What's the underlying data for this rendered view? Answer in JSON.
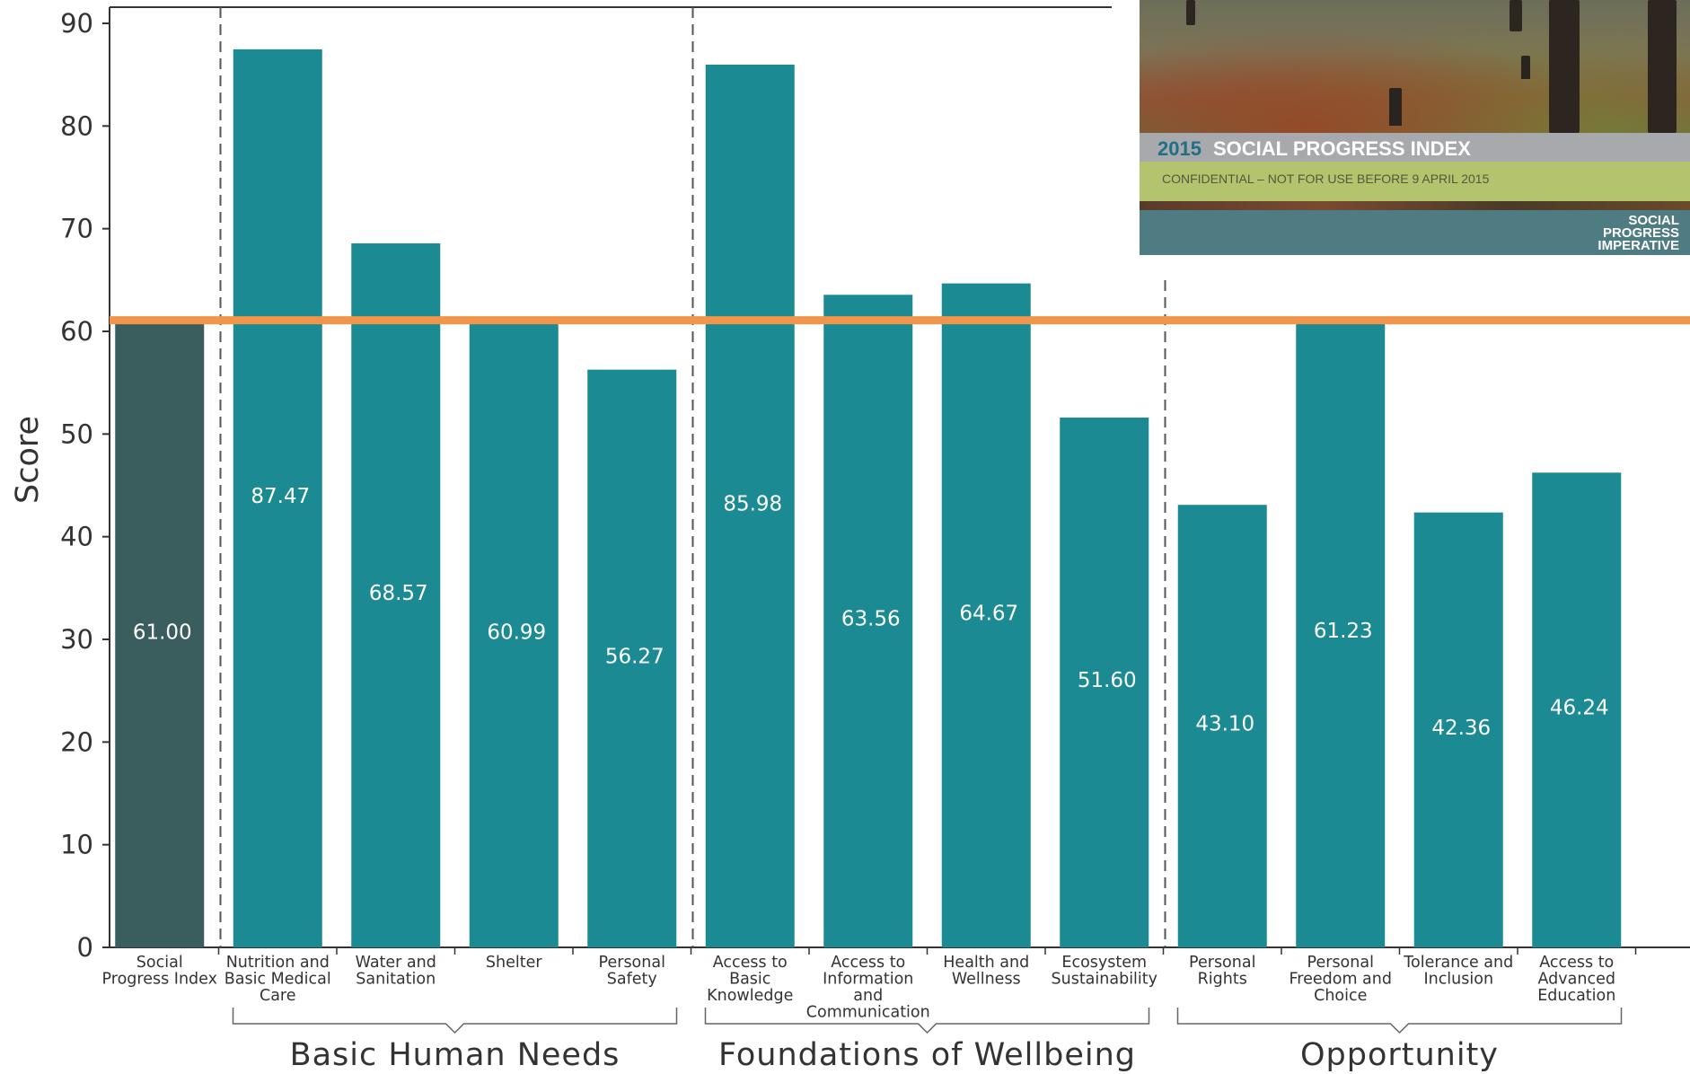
{
  "colors": {
    "bar": "#1c8a93",
    "bar_highlight": "#3a5d5e",
    "reference_line": "#f0954a",
    "axis": "#333333",
    "separator": "#555555"
  },
  "chart_data": {
    "type": "bar",
    "title": "",
    "ylabel": "Score",
    "ylim": [
      0,
      90
    ],
    "yticks": [
      0,
      10,
      20,
      30,
      40,
      50,
      60,
      70,
      80,
      90
    ],
    "grid": false,
    "legend": "none",
    "categories": [
      "Social Progress Index",
      "Nutrition and Basic Medical Care",
      "Water and Sanitation",
      "Shelter",
      "Personal Safety",
      "Access to Basic Knowledge",
      "Access to Information and Communication",
      "Health and Wellness",
      "Ecosystem Sustainability",
      "Personal Rights",
      "Personal Freedom and Choice",
      "Tolerance and Inclusion",
      "Access to Advanced Education"
    ],
    "category_label_lines": [
      [
        "Social",
        "Progress Index"
      ],
      [
        "Nutrition and",
        "Basic Medical",
        "Care"
      ],
      [
        "Water and",
        "Sanitation"
      ],
      [
        "Shelter"
      ],
      [
        "Personal",
        "Safety"
      ],
      [
        "Access to",
        "Basic",
        "Knowledge"
      ],
      [
        "Access to",
        "Information",
        "and",
        "Communication"
      ],
      [
        "Health and",
        "Wellness"
      ],
      [
        "Ecosystem",
        "Sustainability"
      ],
      [
        "Personal",
        "Rights"
      ],
      [
        "Personal",
        "Freedom and",
        "Choice"
      ],
      [
        "Tolerance and",
        "Inclusion"
      ],
      [
        "Access to",
        "Advanced",
        "Education"
      ]
    ],
    "values": [
      61.0,
      87.47,
      68.57,
      60.99,
      56.27,
      85.98,
      63.56,
      64.67,
      51.6,
      43.1,
      61.23,
      42.36,
      46.24
    ],
    "value_labels": [
      "61.00",
      "87.47",
      "68.57",
      "60.99",
      "56.27",
      "85.98",
      "63.56",
      "64.67",
      "51.60",
      "43.10",
      "61.23",
      "42.36",
      "46.24"
    ],
    "highlight_index": 0,
    "reference_line": 61.0,
    "groups": [
      {
        "label": "Basic Human Needs",
        "start": 1,
        "end": 4
      },
      {
        "label": "Foundations of Wellbeing",
        "start": 5,
        "end": 8
      },
      {
        "label": "Opportunity",
        "start": 9,
        "end": 12
      }
    ]
  },
  "cover": {
    "year": "2015",
    "title": "SOCIAL PROGRESS INDEX",
    "subtitle": "CONFIDENTIAL – NOT FOR USE BEFORE 9 APRIL 2015",
    "logo_lines": [
      "SOCIAL",
      "PROGRESS",
      "IMPERATIVE"
    ]
  }
}
